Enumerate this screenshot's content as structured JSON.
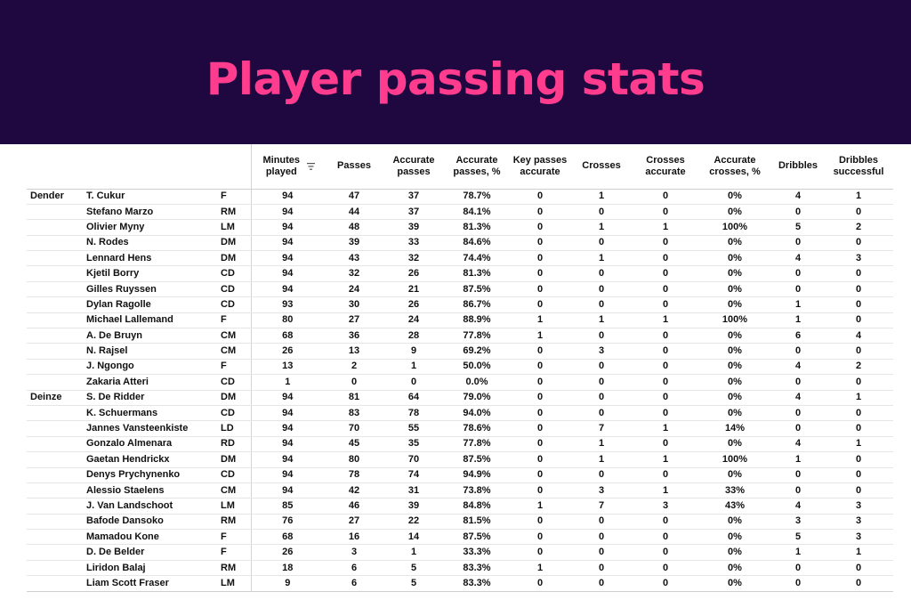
{
  "title": "Player passing stats",
  "colors": {
    "banner_bg": "#1f0840",
    "title": "#ff3c8e"
  },
  "chart_data": {
    "type": "table",
    "title": "Player passing stats",
    "columns": [
      "",
      "",
      "",
      "Minutes played",
      "Passes",
      "Accurate passes",
      "Accurate passes, %",
      "Key passes accurate",
      "Crosses",
      "Crosses accurate",
      "Accurate crosses, %",
      "Dribbles",
      "Dribbles successful"
    ],
    "sort_column": "Minutes played",
    "rows": [
      [
        "Dender",
        "T. Cukur",
        "F",
        "94",
        "47",
        "37",
        "78.7%",
        "0",
        "1",
        "0",
        "0%",
        "4",
        "1"
      ],
      [
        "",
        "Stefano Marzo",
        "RM",
        "94",
        "44",
        "37",
        "84.1%",
        "0",
        "0",
        "0",
        "0%",
        "0",
        "0"
      ],
      [
        "",
        "Olivier Myny",
        "LM",
        "94",
        "48",
        "39",
        "81.3%",
        "0",
        "1",
        "1",
        "100%",
        "5",
        "2"
      ],
      [
        "",
        "N. Rodes",
        "DM",
        "94",
        "39",
        "33",
        "84.6%",
        "0",
        "0",
        "0",
        "0%",
        "0",
        "0"
      ],
      [
        "",
        "Lennard Hens",
        "DM",
        "94",
        "43",
        "32",
        "74.4%",
        "0",
        "1",
        "0",
        "0%",
        "4",
        "3"
      ],
      [
        "",
        "Kjetil Borry",
        "CD",
        "94",
        "32",
        "26",
        "81.3%",
        "0",
        "0",
        "0",
        "0%",
        "0",
        "0"
      ],
      [
        "",
        "Gilles Ruyssen",
        "CD",
        "94",
        "24",
        "21",
        "87.5%",
        "0",
        "0",
        "0",
        "0%",
        "0",
        "0"
      ],
      [
        "",
        "Dylan Ragolle",
        "CD",
        "93",
        "30",
        "26",
        "86.7%",
        "0",
        "0",
        "0",
        "0%",
        "1",
        "0"
      ],
      [
        "",
        "Michael Lallemand",
        "F",
        "80",
        "27",
        "24",
        "88.9%",
        "1",
        "1",
        "1",
        "100%",
        "1",
        "0"
      ],
      [
        "",
        "A. De Bruyn",
        "CM",
        "68",
        "36",
        "28",
        "77.8%",
        "1",
        "0",
        "0",
        "0%",
        "6",
        "4"
      ],
      [
        "",
        "N. Rajsel",
        "CM",
        "26",
        "13",
        "9",
        "69.2%",
        "0",
        "3",
        "0",
        "0%",
        "0",
        "0"
      ],
      [
        "",
        "J. Ngongo",
        "F",
        "13",
        "2",
        "1",
        "50.0%",
        "0",
        "0",
        "0",
        "0%",
        "4",
        "2"
      ],
      [
        "",
        "Zakaria Atteri",
        "CD",
        "1",
        "0",
        "0",
        "0.0%",
        "0",
        "0",
        "0",
        "0%",
        "0",
        "0"
      ],
      [
        "Deinze",
        "S. De Ridder",
        "DM",
        "94",
        "81",
        "64",
        "79.0%",
        "0",
        "0",
        "0",
        "0%",
        "4",
        "1"
      ],
      [
        "",
        "K. Schuermans",
        "CD",
        "94",
        "83",
        "78",
        "94.0%",
        "0",
        "0",
        "0",
        "0%",
        "0",
        "0"
      ],
      [
        "",
        "Jannes Vansteenkiste",
        "LD",
        "94",
        "70",
        "55",
        "78.6%",
        "0",
        "7",
        "1",
        "14%",
        "0",
        "0"
      ],
      [
        "",
        "Gonzalo Almenara",
        "RD",
        "94",
        "45",
        "35",
        "77.8%",
        "0",
        "1",
        "0",
        "0%",
        "4",
        "1"
      ],
      [
        "",
        "Gaetan Hendrickx",
        "DM",
        "94",
        "80",
        "70",
        "87.5%",
        "0",
        "1",
        "1",
        "100%",
        "1",
        "0"
      ],
      [
        "",
        "Denys Prychynenko",
        "CD",
        "94",
        "78",
        "74",
        "94.9%",
        "0",
        "0",
        "0",
        "0%",
        "0",
        "0"
      ],
      [
        "",
        "Alessio Staelens",
        "CM",
        "94",
        "42",
        "31",
        "73.8%",
        "0",
        "3",
        "1",
        "33%",
        "0",
        "0"
      ],
      [
        "",
        "J. Van Landschoot",
        "LM",
        "85",
        "46",
        "39",
        "84.8%",
        "1",
        "7",
        "3",
        "43%",
        "4",
        "3"
      ],
      [
        "",
        "Bafode Dansoko",
        "RM",
        "76",
        "27",
        "22",
        "81.5%",
        "0",
        "0",
        "0",
        "0%",
        "3",
        "3"
      ],
      [
        "",
        "Mamadou Kone",
        "F",
        "68",
        "16",
        "14",
        "87.5%",
        "0",
        "0",
        "0",
        "0%",
        "5",
        "3"
      ],
      [
        "",
        "D. De Belder",
        "F",
        "26",
        "3",
        "1",
        "33.3%",
        "0",
        "0",
        "0",
        "0%",
        "1",
        "1"
      ],
      [
        "",
        "Liridon Balaj",
        "RM",
        "18",
        "6",
        "5",
        "83.3%",
        "1",
        "0",
        "0",
        "0%",
        "0",
        "0"
      ],
      [
        "",
        "Liam Scott Fraser",
        "LM",
        "9",
        "6",
        "5",
        "83.3%",
        "0",
        "0",
        "0",
        "0%",
        "0",
        "0"
      ]
    ]
  }
}
